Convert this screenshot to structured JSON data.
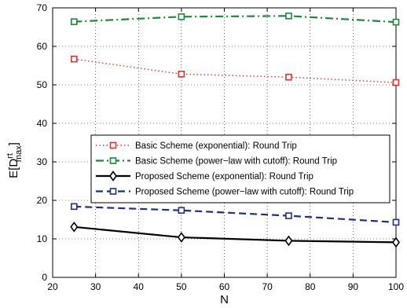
{
  "chart_data": {
    "type": "line",
    "xlabel": "N",
    "ylabel": "E[D",
    "ylabel_sup": "rt",
    "ylabel_sub": "max",
    "ylabel_close": "]",
    "xlim": [
      20,
      100
    ],
    "ylim": [
      0,
      70
    ],
    "xticks": [
      20,
      30,
      40,
      50,
      60,
      70,
      80,
      90,
      100
    ],
    "yticks": [
      0,
      10,
      20,
      30,
      40,
      50,
      60,
      70
    ],
    "grid": true,
    "legend_placement": "center-right",
    "x": [
      25,
      50,
      75,
      100
    ],
    "series": [
      {
        "name": "Basic Scheme (exponential): Round Trip",
        "values": [
          56.7,
          52.8,
          52.0,
          50.6
        ],
        "color": "#e8302a",
        "line_style": "dotted",
        "marker": "square"
      },
      {
        "name": "Basic Scheme (power−law with cutoff): Round Trip",
        "values": [
          66.4,
          67.7,
          67.9,
          66.3
        ],
        "color": "#1a8a3a",
        "line_style": "dashdot",
        "marker": "square"
      },
      {
        "name": "Proposed Scheme (exponential): Round Trip",
        "values": [
          13.1,
          10.4,
          9.5,
          9.1
        ],
        "color": "#000000",
        "line_style": "solid",
        "marker": "diamond"
      },
      {
        "name": "Proposed Scheme (power−law with cutoff): Round Trip",
        "values": [
          18.4,
          17.4,
          16.0,
          14.3
        ],
        "color": "#1f2f8a",
        "line_style": "dashed",
        "marker": "square"
      }
    ]
  }
}
